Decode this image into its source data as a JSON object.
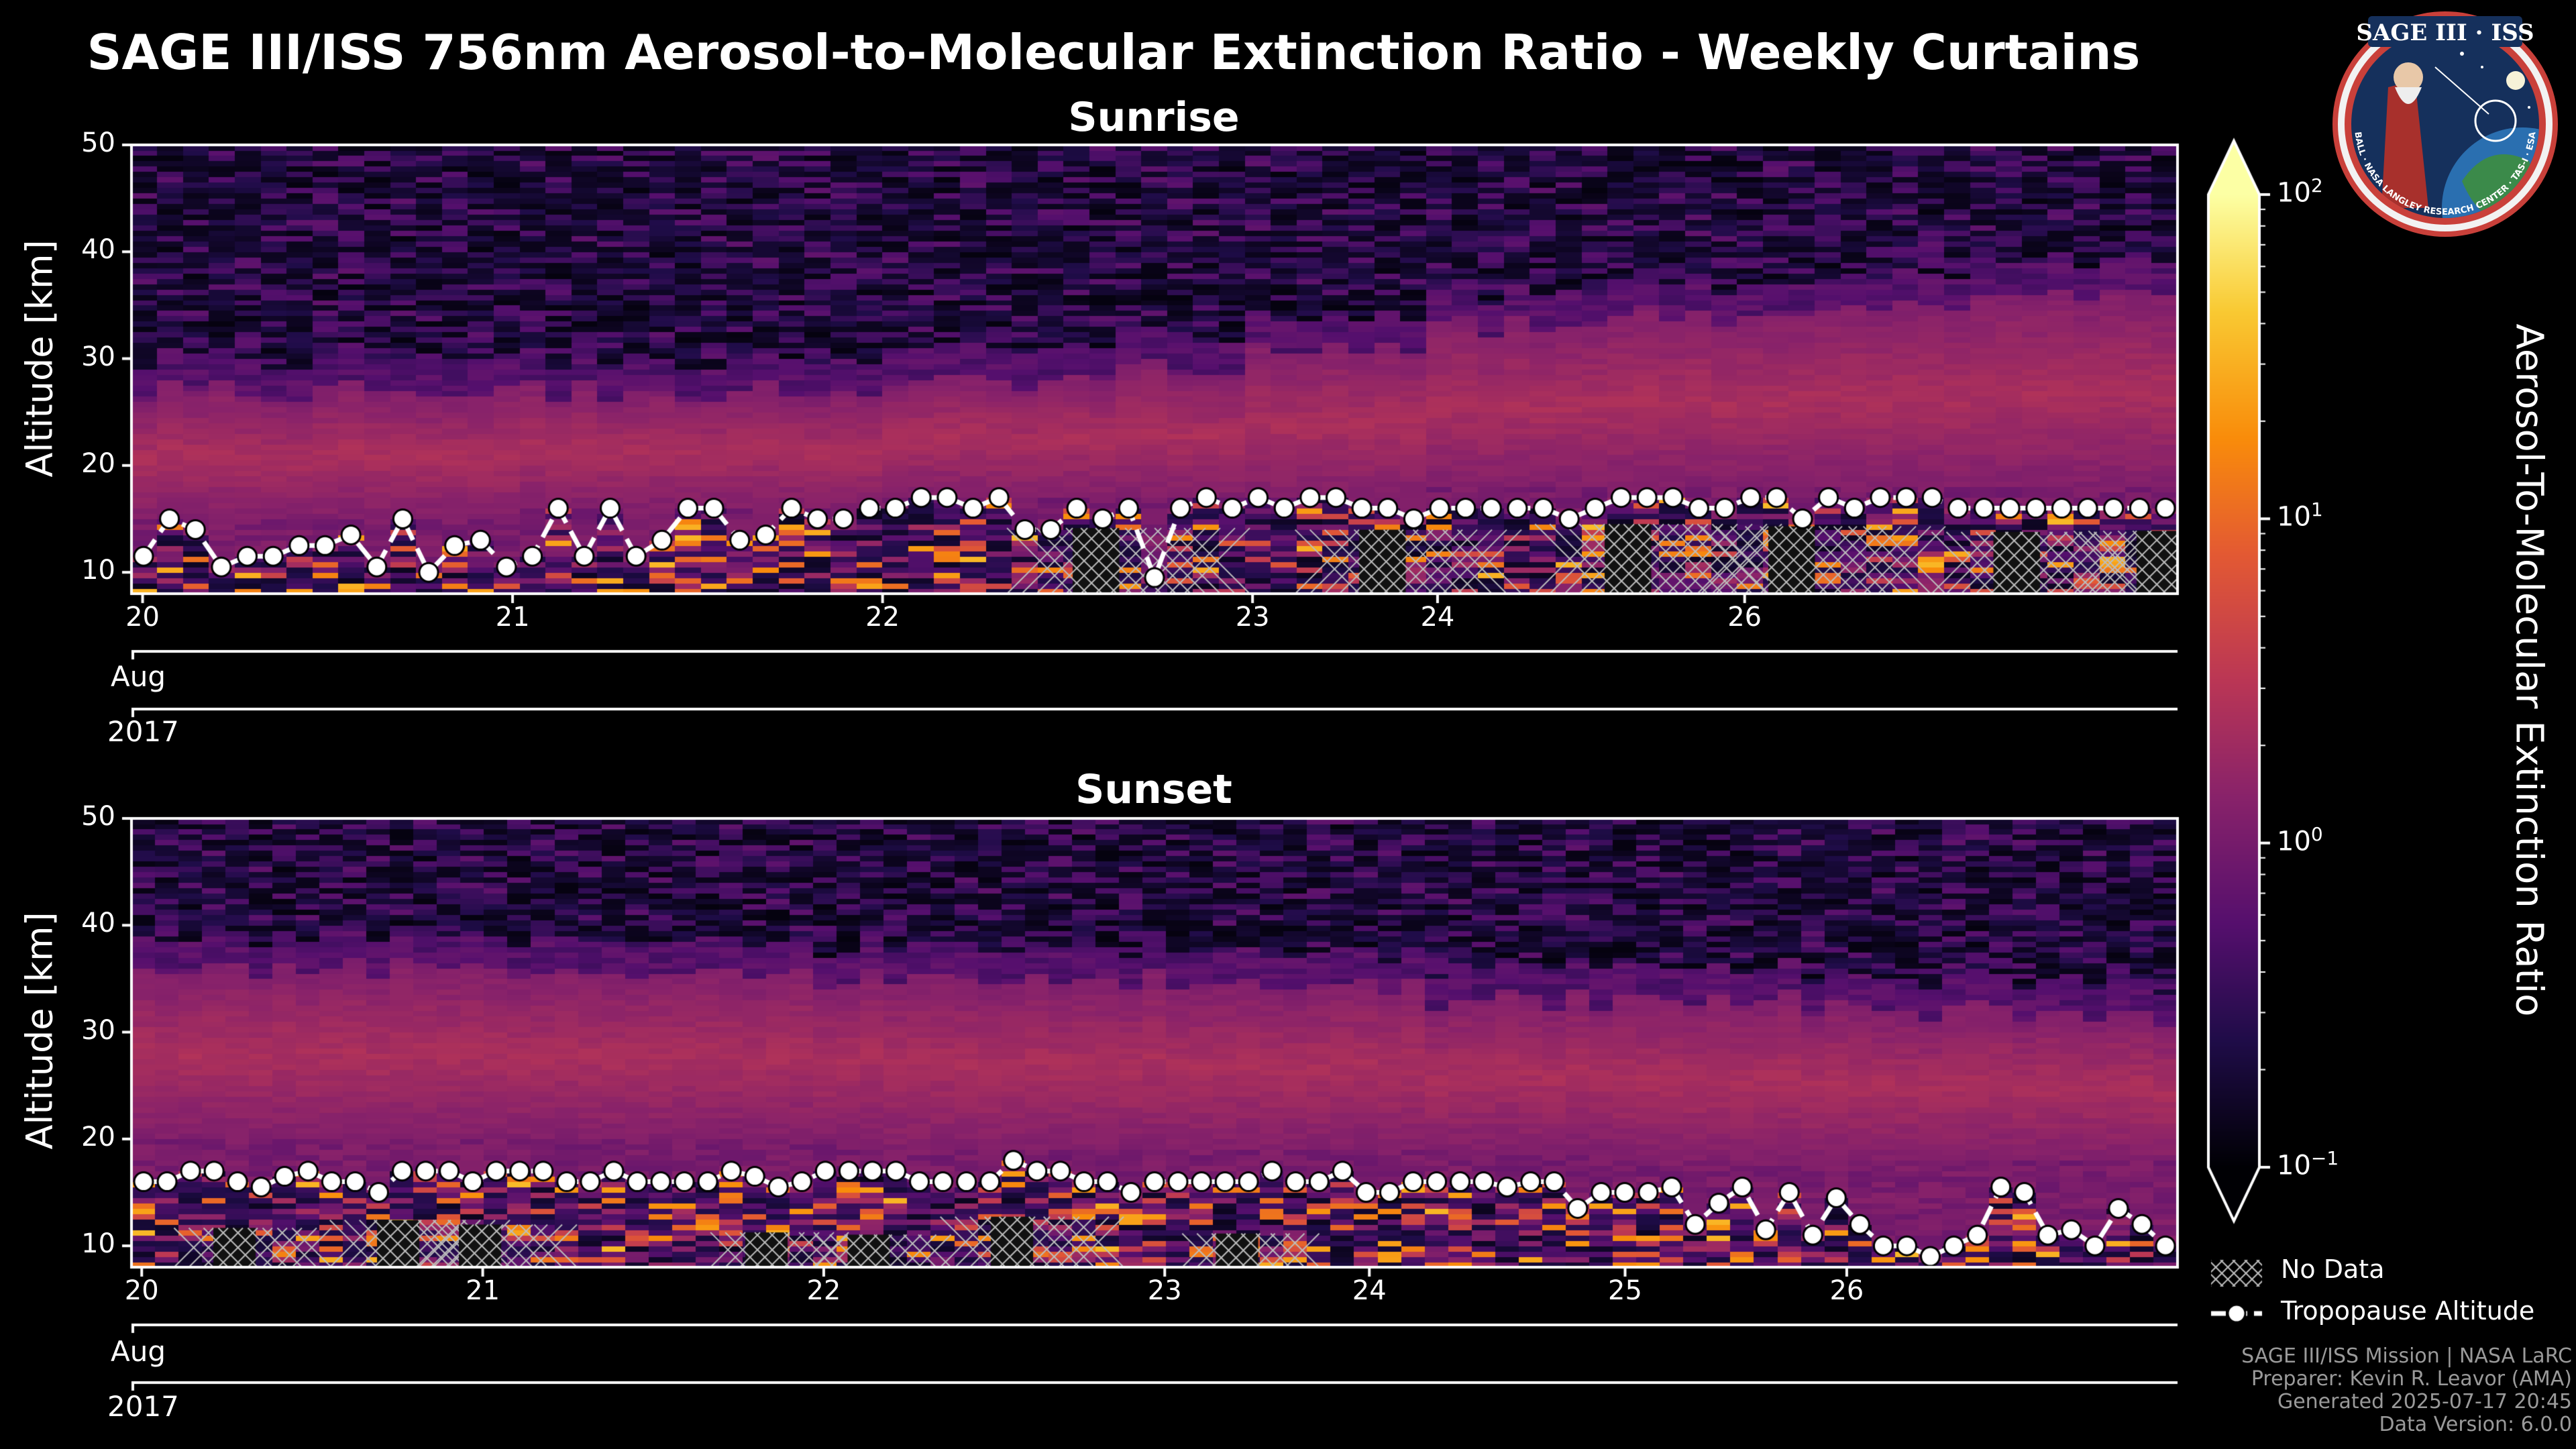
{
  "title": "SAGE III/ISS 756nm Aerosol-to-Molecular Extinction Ratio - Weekly Curtains",
  "colorbar": {
    "label": "Aerosol-To-Molecular Extinction Ratio",
    "ticks": [
      {
        "base": "10",
        "exp": "2",
        "value": 100
      },
      {
        "base": "10",
        "exp": "1",
        "value": 10
      },
      {
        "base": "10",
        "exp": "0",
        "value": 1
      },
      {
        "base": "10",
        "exp": "−1",
        "value": 0.1
      }
    ],
    "colormap": "inferno",
    "scale": "log"
  },
  "legend": {
    "no_data": "No Data",
    "tropopause": "Tropopause Altitude"
  },
  "credits": {
    "line1": "SAGE III/ISS Mission | NASA LaRC",
    "line2": "Preparer: Kevin R. Leavor (AMA)",
    "line3": "Generated 2025-07-17 20:45",
    "line4": "Data Version: 6.0.0"
  },
  "logo": {
    "text_top": "SAGE III · ISS",
    "text_ring": "BALL · NASA LANGLEY RESEARCH CENTER · TAS-I · ESA"
  },
  "chart_data": [
    {
      "type": "heatmap",
      "title": "Sunrise",
      "ylabel": "Altitude [km]",
      "ylim": [
        8,
        50
      ],
      "yticks": [
        10,
        20,
        30,
        40,
        50
      ],
      "xticks": [
        "20",
        "21",
        "22",
        "23",
        "24",
        "26"
      ],
      "xtick_days": [
        20,
        21,
        22,
        23,
        23.5,
        24.33
      ],
      "x_range_days": [
        19.97,
        25.5
      ],
      "month_label": "Aug",
      "year_label": "2017",
      "tropopause_km": [
        11.5,
        15,
        14,
        10.5,
        11.5,
        11.5,
        12.5,
        12.5,
        13.5,
        10.5,
        15,
        10,
        12.5,
        13,
        10.5,
        11.5,
        16,
        11.5,
        16,
        11.5,
        13,
        16,
        16,
        13,
        13.5,
        16,
        15,
        15,
        16,
        16,
        17,
        17,
        16,
        17,
        14,
        14,
        16,
        15,
        16,
        9.5,
        16,
        17,
        16,
        17,
        16,
        17,
        17,
        16,
        16,
        15,
        16,
        16,
        16,
        16,
        16,
        15,
        16,
        17,
        17,
        17,
        16,
        16,
        17,
        17,
        15,
        17,
        16,
        17,
        17,
        17,
        16,
        16,
        16,
        16,
        16,
        16,
        16,
        16,
        16
      ],
      "aerosol_layer_top_km": [
        27,
        27,
        27,
        27,
        28,
        29,
        31,
        33,
        34,
        35,
        36,
        36
      ],
      "notes_aerosol_layer_bottom_km": [
        15,
        15,
        16,
        16,
        17,
        17,
        17,
        18,
        18,
        18,
        18,
        18
      ]
    },
    {
      "type": "heatmap",
      "title": "Sunset",
      "ylabel": "Altitude [km]",
      "ylim": [
        8,
        50
      ],
      "yticks": [
        10,
        20,
        30,
        40,
        50
      ],
      "xticks": [
        "20",
        "21",
        "22",
        "23",
        "24",
        "25",
        "26"
      ],
      "xtick_days": [
        20,
        21,
        22,
        23,
        23.6,
        24.35,
        25
      ],
      "x_range_days": [
        19.97,
        25.97
      ],
      "month_label": "Aug",
      "year_label": "2017",
      "tropopause_km": [
        16,
        16,
        17,
        17,
        16,
        15.5,
        16.5,
        17,
        16,
        16,
        15,
        17,
        17,
        17,
        16,
        17,
        17,
        17,
        16,
        16,
        17,
        16,
        16,
        16,
        16,
        17,
        16.5,
        15.5,
        16,
        17,
        17,
        17,
        17,
        16,
        16,
        16,
        16,
        18,
        17,
        17,
        16,
        16,
        15,
        16,
        16,
        16,
        16,
        16,
        17,
        16,
        16,
        17,
        15,
        15,
        16,
        16,
        16,
        16,
        15.5,
        16,
        16,
        13.5,
        15,
        15,
        15,
        15.5,
        12,
        14,
        15.5,
        11.5,
        15,
        11,
        14.5,
        12,
        10,
        10,
        9,
        10,
        11,
        15.5,
        15,
        11,
        11.5,
        10,
        13.5,
        12,
        10
      ],
      "aerosol_layer_top_km": [
        36,
        36,
        36,
        35,
        35,
        35,
        34,
        33,
        33,
        32,
        32,
        31
      ],
      "notes_aerosol_layer_bottom_km": [
        20,
        20,
        20,
        20,
        19,
        19,
        19,
        19,
        18,
        18,
        18,
        18
      ]
    }
  ]
}
